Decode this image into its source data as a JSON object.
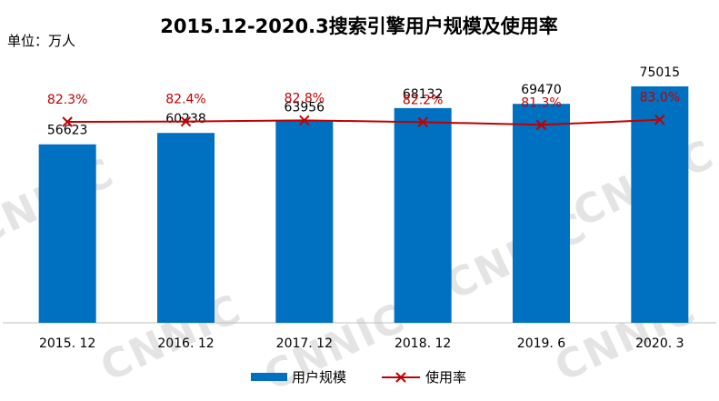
{
  "chart_data": {
    "type": "bar",
    "title": "2015.12-2020.3搜索引擎用户规模及使用率",
    "unit_label": "单位：万人",
    "categories": [
      "2015. 12",
      "2016. 12",
      "2017. 12",
      "2018. 12",
      "2019. 6",
      "2020. 3"
    ],
    "series": [
      {
        "name": "用户规模",
        "type": "bar",
        "values": [
          56623,
          60238,
          63956,
          68132,
          69470,
          75015
        ],
        "labels": [
          "56623",
          "60238",
          "63956",
          "68132",
          "69470",
          "75015"
        ],
        "color": "#0070c0"
      },
      {
        "name": "使用率",
        "type": "line",
        "values": [
          82.3,
          82.4,
          82.8,
          82.2,
          81.3,
          83.0
        ],
        "labels": [
          "82.3%",
          "82.4%",
          "82.8%",
          "82.2%",
          "81.3%",
          "83.0%"
        ],
        "color": "#c00000",
        "marker": "x"
      }
    ],
    "bar_axis_range": [
      0,
      100000
    ],
    "rate_axis_range": [
      0,
      100
    ],
    "grid": false,
    "legend_placement": "bottom",
    "watermark": "CNNIC"
  }
}
